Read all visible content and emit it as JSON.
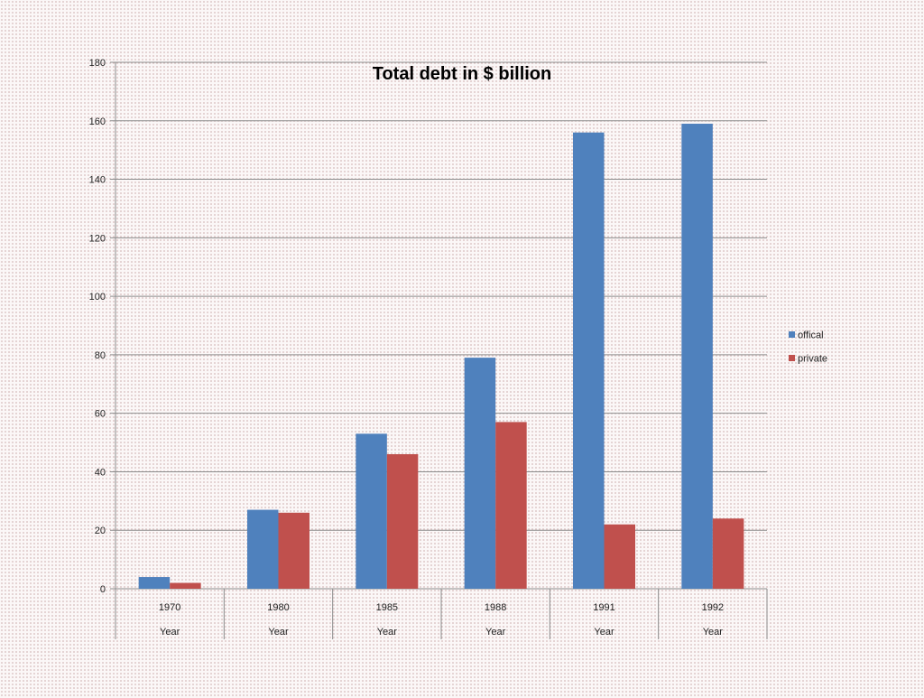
{
  "chart_data": {
    "type": "bar",
    "title": "Total debt in $ billion",
    "categories": [
      "1970",
      "1980",
      "1985",
      "1988",
      "1991",
      "1992"
    ],
    "category_group_label": "Year",
    "series": [
      {
        "name": "offical",
        "color": "#4f81bd",
        "values": [
          4,
          27,
          53,
          79,
          156,
          159
        ]
      },
      {
        "name": "private",
        "color": "#c0504d",
        "values": [
          2,
          26,
          46,
          57,
          22,
          24
        ]
      }
    ],
    "ylim": [
      0,
      180
    ],
    "yticks": [
      0,
      20,
      40,
      60,
      80,
      100,
      120,
      140,
      160,
      180
    ],
    "xlabel": "",
    "ylabel": "",
    "grid": true,
    "legend_position": "right"
  }
}
